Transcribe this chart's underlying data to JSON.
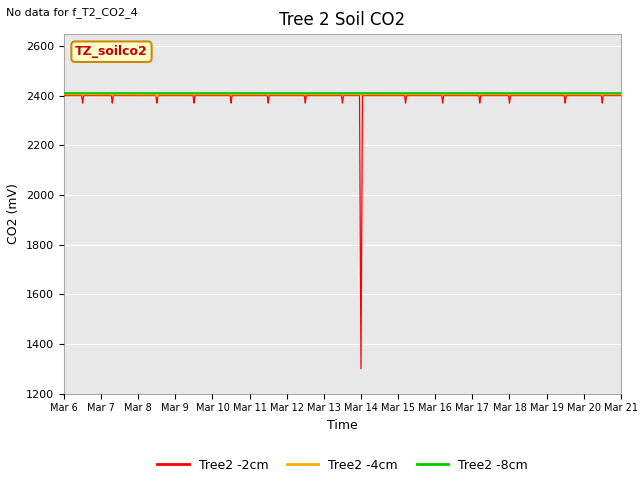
{
  "title": "Tree 2 Soil CO2",
  "no_data_text": "No data for f_T2_CO2_4",
  "ylabel": "CO2 (mV)",
  "xlabel": "Time",
  "ylim": [
    1200,
    2650
  ],
  "yticks": [
    1200,
    1400,
    1600,
    1800,
    2000,
    2200,
    2400,
    2600
  ],
  "fig_bg_color": "#ffffff",
  "plot_bg_color": "#e8e8e8",
  "num_days": 15,
  "x_tick_labels": [
    "Mar 6",
    "Mar 7",
    "Mar 8",
    "Mar 9",
    "Mar 10",
    "Mar 11",
    "Mar 12",
    "Mar 13",
    "Mar 14",
    "Mar 15",
    "Mar 16",
    "Mar 17",
    "Mar 18",
    "Mar 19",
    "Mar 20",
    "Mar 21"
  ],
  "red_base": 2400,
  "red_big_dip_day": 8.0,
  "red_big_dip_val": 1300,
  "red_small_dips": [
    0.5,
    1.3,
    2.5,
    3.5,
    4.5,
    5.5,
    6.5,
    7.5,
    9.2,
    10.2,
    11.2,
    12.0,
    13.5,
    14.5
  ],
  "red_small_dip_val": 2370,
  "orange_base": 2405,
  "orange_dip_day": 2.5,
  "orange_dip_val": 2396,
  "green_base": 2410,
  "annotation_text": "TZ_soilco2",
  "annotation_facecolor": "#ffffcc",
  "annotation_edgecolor": "#cc8800",
  "annotation_textcolor": "#cc0000",
  "series_colors": [
    "#ff0000",
    "#ffaa00",
    "#00cc00"
  ],
  "series_labels": [
    "Tree2 -2cm",
    "Tree2 -4cm",
    "Tree2 -8cm"
  ],
  "title_fontsize": 12,
  "axis_label_fontsize": 9,
  "tick_fontsize": 8,
  "legend_fontsize": 9
}
